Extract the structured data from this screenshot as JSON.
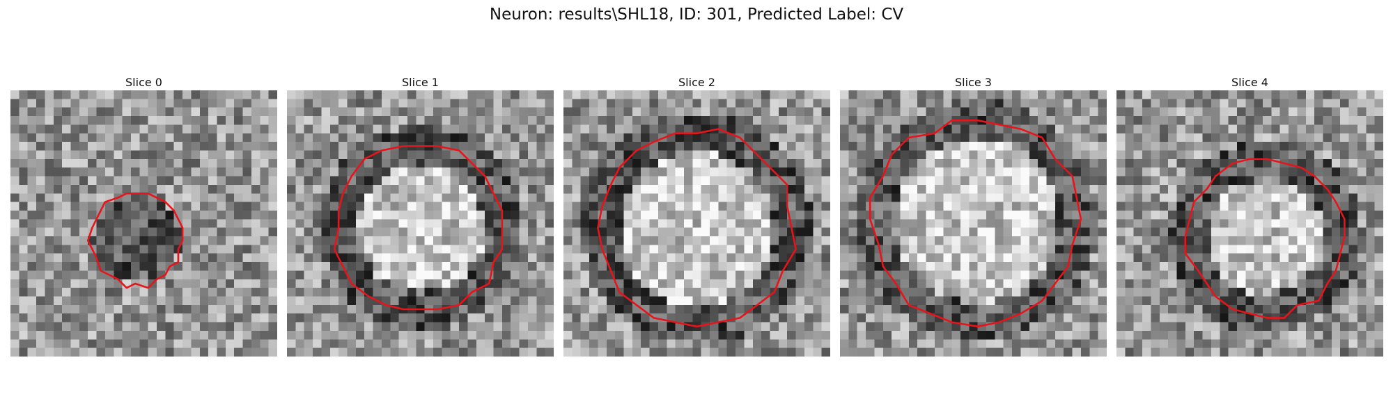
{
  "figure": {
    "title": "Neuron: results\\SHL18, ID: 301, Predicted Label: CV"
  },
  "panels": [
    {
      "title": "Slice 0",
      "center": [
        0.47,
        0.56
      ],
      "radius": 0.33,
      "ring": "dark",
      "seed": 11
    },
    {
      "title": "Slice 1",
      "center": [
        0.5,
        0.52
      ],
      "radius": 0.62,
      "ring": "ring",
      "seed": 23
    },
    {
      "title": "Slice 2",
      "center": [
        0.5,
        0.52
      ],
      "radius": 0.72,
      "ring": "ring",
      "seed": 37
    },
    {
      "title": "Slice 3",
      "center": [
        0.51,
        0.49
      ],
      "radius": 0.76,
      "ring": "ring",
      "seed": 41
    },
    {
      "title": "Slice 4",
      "center": [
        0.56,
        0.55
      ],
      "radius": 0.58,
      "ring": "ring",
      "seed": 53
    }
  ],
  "styles": {
    "contour_color": "#e8141b"
  }
}
